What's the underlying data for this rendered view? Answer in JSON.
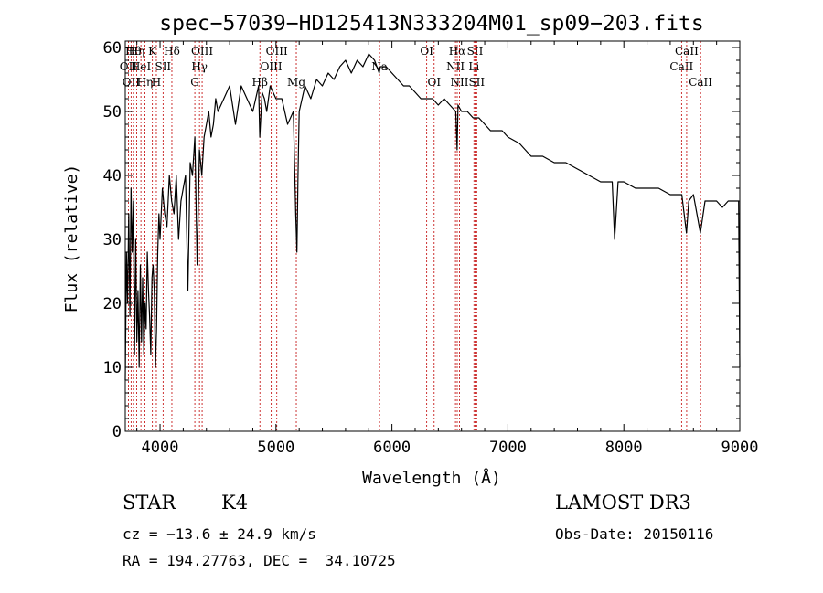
{
  "chart_data": {
    "type": "line",
    "title": "spec−57039−HD125413N333204M01_sp09−203.fits",
    "xlabel": "Wavelength (Å)",
    "ylabel": "Flux (relative)",
    "xlim": [
      3700,
      9000
    ],
    "ylim": [
      0,
      61
    ],
    "xticks": [
      4000,
      5000,
      6000,
      7000,
      8000,
      9000
    ],
    "yticks": [
      0,
      10,
      20,
      30,
      40,
      50,
      60
    ],
    "tick_labels_x": [
      "4000",
      "5000",
      "6000",
      "7000",
      "8000",
      "9000"
    ],
    "tick_labels_y": [
      "0",
      "10",
      "20",
      "30",
      "40",
      "50",
      "60"
    ],
    "series": [
      {
        "name": "flux",
        "x": [
          3700,
          3710,
          3720,
          3730,
          3740,
          3750,
          3760,
          3770,
          3780,
          3790,
          3800,
          3810,
          3820,
          3830,
          3840,
          3850,
          3860,
          3870,
          3880,
          3890,
          3900,
          3910,
          3920,
          3930,
          3940,
          3950,
          3960,
          3970,
          3980,
          3990,
          4000,
          4020,
          4040,
          4060,
          4080,
          4100,
          4120,
          4140,
          4160,
          4180,
          4200,
          4220,
          4240,
          4260,
          4280,
          4300,
          4320,
          4340,
          4360,
          4380,
          4400,
          4420,
          4440,
          4460,
          4480,
          4500,
          4550,
          4600,
          4650,
          4700,
          4750,
          4800,
          4850,
          4860,
          4880,
          4900,
          4920,
          4950,
          5000,
          5050,
          5100,
          5150,
          5170,
          5180,
          5190,
          5200,
          5250,
          5300,
          5350,
          5400,
          5450,
          5500,
          5550,
          5600,
          5650,
          5700,
          5750,
          5800,
          5850,
          5890,
          5900,
          5950,
          6000,
          6050,
          6100,
          6150,
          6200,
          6250,
          6300,
          6350,
          6400,
          6450,
          6500,
          6550,
          6562,
          6570,
          6600,
          6650,
          6700,
          6750,
          6800,
          6850,
          6900,
          6950,
          7000,
          7100,
          7200,
          7300,
          7400,
          7500,
          7600,
          7700,
          7800,
          7900,
          7920,
          7950,
          8000,
          8100,
          8200,
          8300,
          8400,
          8500,
          8540,
          8560,
          8600,
          8660,
          8700,
          8750,
          8800,
          8850,
          8900,
          8950,
          8990,
          9000
        ],
        "values": [
          8,
          28,
          20,
          34,
          18,
          38,
          28,
          36,
          12,
          30,
          14,
          22,
          10,
          26,
          14,
          24,
          12,
          20,
          16,
          28,
          22,
          18,
          12,
          24,
          26,
          22,
          10,
          16,
          28,
          34,
          30,
          38,
          34,
          32,
          40,
          36,
          34,
          40,
          30,
          36,
          38,
          40,
          22,
          42,
          40,
          46,
          26,
          44,
          40,
          46,
          48,
          50,
          46,
          48,
          52,
          50,
          52,
          54,
          48,
          54,
          52,
          50,
          54,
          46,
          53,
          52,
          50,
          54,
          52,
          52,
          48,
          50,
          34,
          28,
          40,
          50,
          54,
          52,
          55,
          54,
          56,
          55,
          57,
          58,
          56,
          58,
          57,
          59,
          58,
          56,
          57,
          57,
          56,
          55,
          54,
          54,
          53,
          52,
          52,
          52,
          51,
          52,
          51,
          50,
          44,
          51,
          50,
          50,
          49,
          49,
          48,
          47,
          47,
          47,
          46,
          45,
          43,
          43,
          42,
          42,
          41,
          40,
          39,
          39,
          30,
          39,
          39,
          38,
          38,
          38,
          37,
          37,
          31,
          36,
          37,
          31,
          36,
          36,
          36,
          35,
          36,
          36,
          36,
          10
        ]
      }
    ],
    "line_markers": [
      {
        "wavelength": 3727,
        "label": "OII",
        "row": 2
      },
      {
        "wavelength": 3750,
        "label": "OII",
        "row": 3
      },
      {
        "wavelength": 3770,
        "label": "Hθ",
        "row": 1
      },
      {
        "wavelength": 3798,
        "label": "Hη",
        "row": 1
      },
      {
        "wavelength": 3835,
        "label": "HeI",
        "row": 2
      },
      {
        "wavelength": 3869,
        "label": "Hη",
        "row": 3
      },
      {
        "wavelength": 3934,
        "label": "K",
        "row": 1
      },
      {
        "wavelength": 3968,
        "label": "H",
        "row": 3
      },
      {
        "wavelength": 4026,
        "label": "SII",
        "row": 2
      },
      {
        "wavelength": 4102,
        "label": "Hδ",
        "row": 1
      },
      {
        "wavelength": 4300,
        "label": "G",
        "row": 3
      },
      {
        "wavelength": 4340,
        "label": "Hγ",
        "row": 2
      },
      {
        "wavelength": 4363,
        "label": "OIII",
        "row": 1
      },
      {
        "wavelength": 4861,
        "label": "Hβ",
        "row": 3
      },
      {
        "wavelength": 4959,
        "label": "OIII",
        "row": 2
      },
      {
        "wavelength": 5007,
        "label": "OIII",
        "row": 1
      },
      {
        "wavelength": 5175,
        "label": "Mg",
        "row": 3
      },
      {
        "wavelength": 5893,
        "label": "Na",
        "row": 2
      },
      {
        "wavelength": 6300,
        "label": "OI",
        "row": 1
      },
      {
        "wavelength": 6364,
        "label": "OI",
        "row": 3
      },
      {
        "wavelength": 6548,
        "label": "NII",
        "row": 2
      },
      {
        "wavelength": 6563,
        "label": "Hα",
        "row": 1
      },
      {
        "wavelength": 6583,
        "label": "NII",
        "row": 3
      },
      {
        "wavelength": 6707,
        "label": "Li",
        "row": 2
      },
      {
        "wavelength": 6717,
        "label": "SII",
        "row": 1
      },
      {
        "wavelength": 6731,
        "label": "SII",
        "row": 3
      },
      {
        "wavelength": 8498,
        "label": "CaII",
        "row": 2
      },
      {
        "wavelength": 8542,
        "label": "CaII",
        "row": 1
      },
      {
        "wavelength": 8662,
        "label": "CaII",
        "row": 3
      }
    ]
  },
  "info": {
    "object_class": "STAR",
    "subclass": "K4",
    "survey": "LAMOST DR3",
    "cz": "cz = −13.6 ± 24.9 km/s",
    "obs_date": "Obs-Date: 20150116",
    "coords": "RA = 194.27763, DEC =  34.10725"
  },
  "colors": {
    "axes": "#000000",
    "spectrum": "#000000",
    "markers": "#c00000"
  }
}
